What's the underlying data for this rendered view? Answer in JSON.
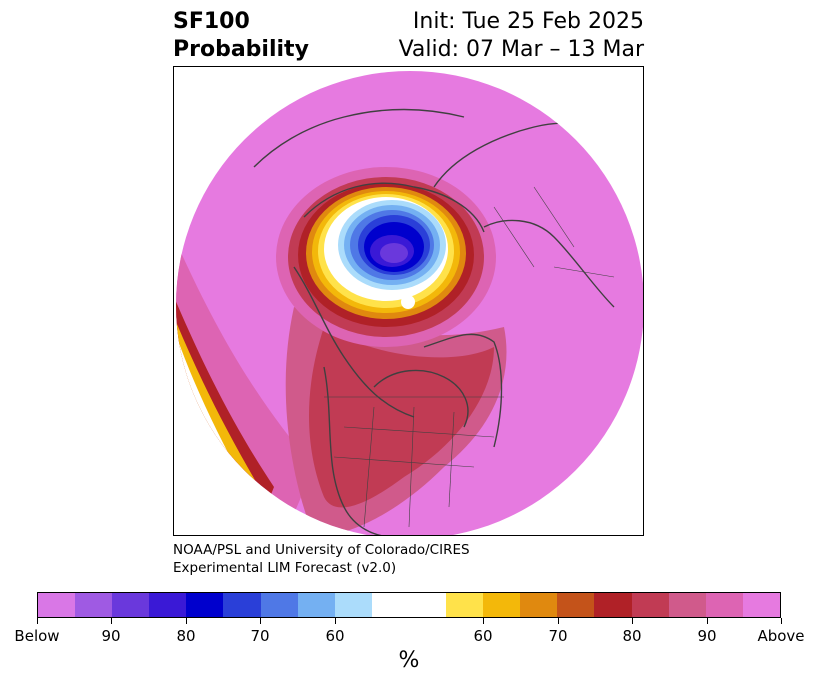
{
  "title": {
    "variable": "SF100",
    "subtitle": "Probability",
    "init": "Init: Tue 25 Feb 2025",
    "valid": "Valid: 07 Mar – 13 Mar"
  },
  "credit": {
    "line1": "NOAA/PSL and University of Colorado/CIRES",
    "line2": "Experimental LIM Forecast (v2.0)"
  },
  "colorbar": {
    "colors": [
      "#d977e6",
      "#9f5ae3",
      "#6a38dc",
      "#3a19d6",
      "#0000cd",
      "#2a3fd8",
      "#4f78e6",
      "#74b0f2",
      "#abdcfb",
      "#ffffff",
      "#ffffff",
      "#ffe24a",
      "#f3b80a",
      "#e0890f",
      "#c4531a",
      "#b02127",
      "#c13b54",
      "#d05a8b",
      "#dd64b3",
      "#e67ae0"
    ],
    "tick_labels": [
      "Below",
      "90",
      "80",
      "70",
      "60",
      "60",
      "70",
      "80",
      "90",
      "Above"
    ],
    "unit": "%"
  },
  "map_legend": {
    "below_color": "#6a38dc",
    "above_color": "#e67ae0"
  }
}
